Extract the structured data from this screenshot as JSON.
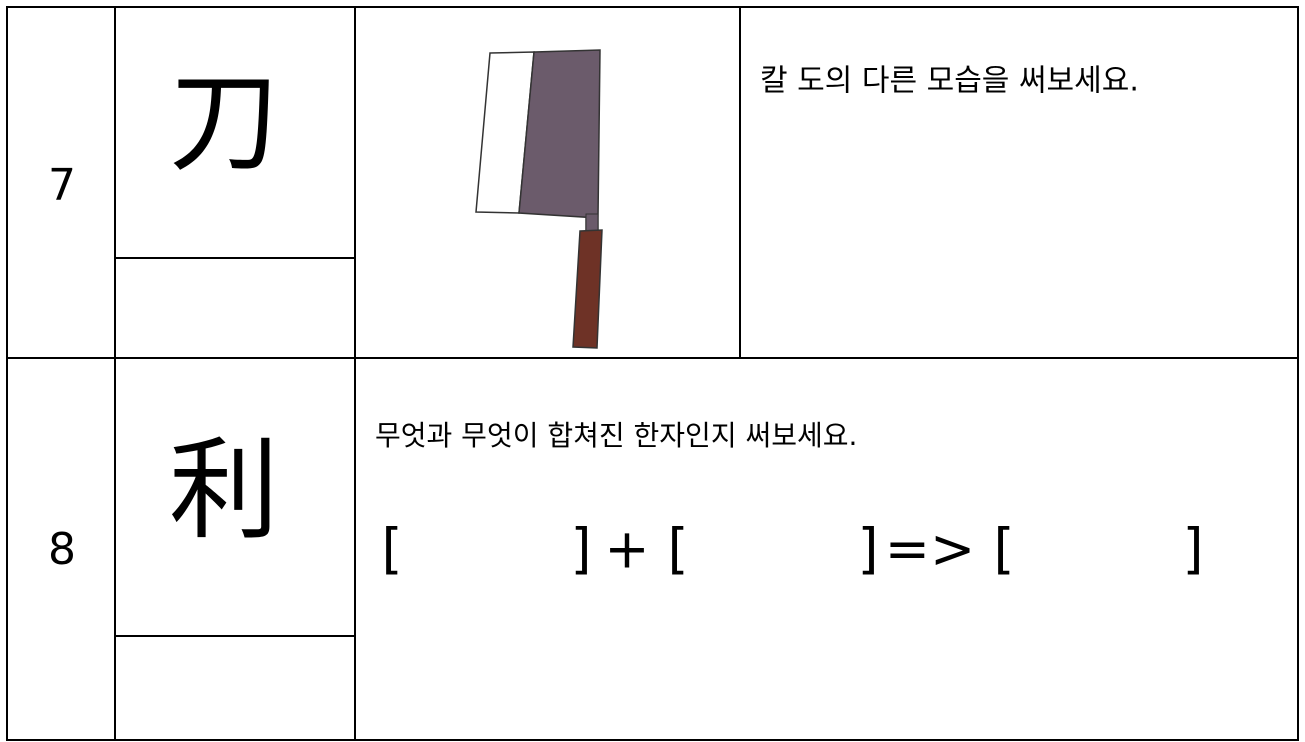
{
  "rows": [
    {
      "number": "7",
      "hanja": "刀",
      "prompt": "칼 도의 다른 모습을 써보세요."
    },
    {
      "number": "8",
      "hanja": "利",
      "prompt": "무엇과 무엇이 합쳐진 한자인지 써보세요.",
      "formula": [
        "[",
        "]",
        "+",
        "[",
        "]",
        "=>",
        "[",
        "]"
      ]
    }
  ]
}
